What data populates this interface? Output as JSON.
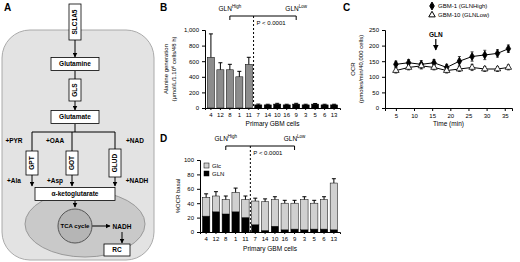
{
  "diagram": {
    "panel_label": "A",
    "nodes": [
      {
        "label": "SLC1A5"
      },
      {
        "label": "Glutamine"
      },
      {
        "label": "GLS"
      },
      {
        "label": "Glutamate"
      },
      {
        "label": "+PYR"
      },
      {
        "label": "+OAA"
      },
      {
        "label": "+NAD"
      },
      {
        "label": "GPT"
      },
      {
        "label": "GOT"
      },
      {
        "label": "GLUD"
      },
      {
        "label": "+Ala"
      },
      {
        "label": "+Asp"
      },
      {
        "label": "+NADH"
      },
      {
        "label": "α-ketoglutarate"
      },
      {
        "label": "TCA cycle"
      },
      {
        "label": "NADH"
      },
      {
        "label": "RC"
      }
    ]
  },
  "chart_data": [
    {
      "type": "bar",
      "panel_label": "B",
      "y_label": [
        "Alanine generation",
        "(μmol/L/1.10⁶ cells/48 h)"
      ],
      "x_label": "Primary GBM cells",
      "categories": [
        "4",
        "12",
        "8",
        "1",
        "11",
        "7",
        "14",
        "10",
        "16",
        "9",
        "3",
        "5",
        "6",
        "13"
      ],
      "values": [
        650,
        490,
        490,
        400,
        560,
        40,
        40,
        50,
        40,
        50,
        40,
        50,
        40,
        40
      ],
      "errors": [
        300,
        90,
        70,
        70,
        90,
        10,
        8,
        10,
        8,
        10,
        8,
        8,
        8,
        8
      ],
      "colors": [
        "#8c8c8c",
        "#8c8c8c",
        "#8c8c8c",
        "#8c8c8c",
        "#8c8c8c",
        "#000000",
        "#000000",
        "#000000",
        "#000000",
        "#000000",
        "#000000",
        "#000000",
        "#000000",
        "#000000"
      ],
      "ylim": [
        0,
        1000
      ],
      "yticks": [
        0,
        200,
        400,
        600,
        800,
        {
          "value": 1000,
          "label": "1,000"
        }
      ],
      "groups": [
        {
          "label": "GLN",
          "superscript": "High",
          "categories": [
            "4",
            "12",
            "8",
            "1",
            "11"
          ]
        },
        {
          "label": "GLN",
          "superscript": "Low",
          "categories": [
            "7",
            "14",
            "10",
            "16",
            "9",
            "3",
            "5",
            "6",
            "13"
          ]
        }
      ],
      "annotations": [
        "P < 0.0001"
      ]
    },
    {
      "type": "line",
      "panel_label": "C",
      "y_label": [
        "OCR",
        "(pmoles/min/40,000 cells)"
      ],
      "x_label": "Time (min)",
      "x": [
        5,
        8.5,
        12,
        15.5,
        19,
        22.5,
        26,
        29.5,
        33,
        36
      ],
      "xlim": [
        2,
        37
      ],
      "xticks": [
        5,
        10,
        15,
        20,
        25,
        30,
        35
      ],
      "ylim": [
        0,
        250
      ],
      "yticks": [
        0,
        50,
        100,
        150,
        200,
        250
      ],
      "legend": "top-right",
      "series": [
        {
          "name": "GBM-1 (GLNHigh)",
          "color": "#000000",
          "marker": "diamond",
          "values": [
            140,
            145,
            140,
            145,
            130,
            150,
            165,
            170,
            175,
            190
          ],
          "errors": [
            10,
            10,
            12,
            10,
            10,
            15,
            15,
            15,
            12,
            12
          ]
        },
        {
          "name": "GBM-10 (GLNLow)",
          "color": "#000000",
          "marker": "triangle-open",
          "values": [
            120,
            130,
            135,
            130,
            120,
            125,
            130,
            125,
            125,
            130
          ],
          "errors": [
            8,
            8,
            10,
            8,
            8,
            8,
            10,
            8,
            8,
            8
          ]
        }
      ],
      "annotations": [
        {
          "text": "GLN",
          "x": 16
        }
      ]
    },
    {
      "type": "bar",
      "panel_label": "D",
      "stacked": true,
      "y_label": [
        "%OCR basal"
      ],
      "x_label": "Primary GBM cells",
      "categories": [
        "4",
        "12",
        "8",
        "1",
        "11",
        "7",
        "14",
        "10",
        "16",
        "9",
        "3",
        "5",
        "6",
        "13"
      ],
      "ylim": [
        0,
        100
      ],
      "yticks": [
        0,
        20,
        40,
        60,
        80,
        100
      ],
      "legend": "top-left",
      "series": [
        {
          "name": "GLN",
          "color": "#000000",
          "values": [
            22,
            28,
            25,
            28,
            20,
            10,
            2,
            8,
            3,
            4,
            3,
            4,
            4,
            3
          ]
        },
        {
          "name": "Glc",
          "color": "#d0d0d0",
          "values": [
            26,
            22,
            20,
            27,
            25,
            33,
            40,
            37,
            37,
            36,
            42,
            36,
            41,
            65
          ],
          "errors": [
            5,
            6,
            5,
            6,
            5,
            4,
            4,
            4,
            4,
            4,
            4,
            4,
            4,
            6
          ]
        }
      ],
      "groups": [
        {
          "label": "GLN",
          "superscript": "High",
          "categories": [
            "4",
            "12",
            "8",
            "1",
            "11"
          ]
        },
        {
          "label": "GLN",
          "superscript": "Low",
          "categories": [
            "7",
            "14",
            "10",
            "16",
            "9",
            "3",
            "5",
            "6",
            "13"
          ]
        }
      ],
      "annotations": [
        "P < 0.0001"
      ]
    }
  ]
}
